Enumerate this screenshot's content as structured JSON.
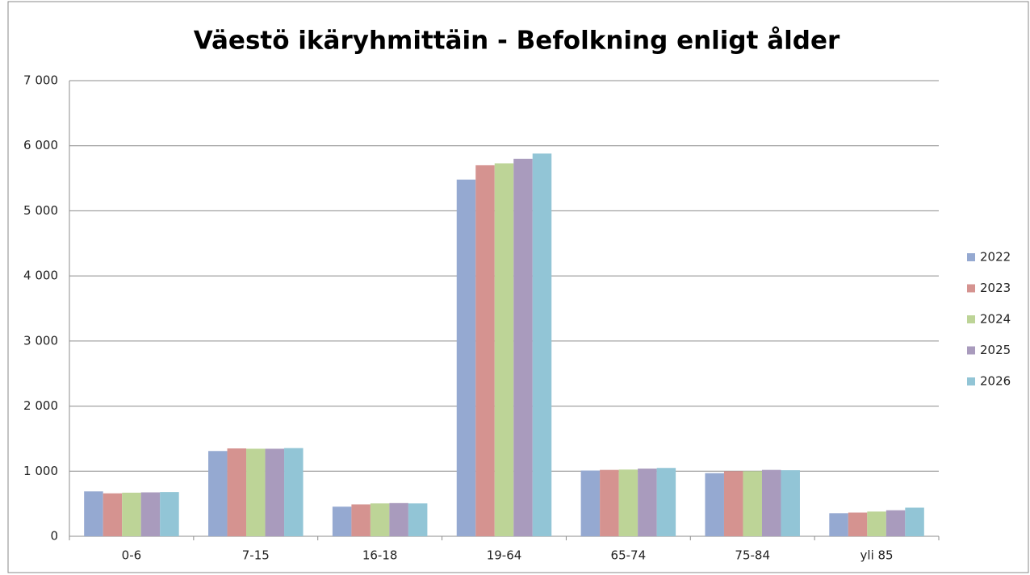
{
  "chart_data": {
    "type": "bar",
    "title": "Väestö ikäryhmittäin - Befolkning enligt ålder",
    "categories": [
      "0-6",
      "7-15",
      "16-18",
      "19-64",
      "65-74",
      "75-84",
      "yli 85"
    ],
    "series": [
      {
        "name": "2022",
        "color": "#95a9d1",
        "values": [
          690,
          1310,
          455,
          5480,
          1010,
          970,
          355
        ]
      },
      {
        "name": "2023",
        "color": "#d59390",
        "values": [
          660,
          1350,
          490,
          5700,
          1020,
          1000,
          365
        ]
      },
      {
        "name": "2024",
        "color": "#bdd497",
        "values": [
          670,
          1345,
          505,
          5730,
          1025,
          1000,
          380
        ]
      },
      {
        "name": "2025",
        "color": "#a99bbd",
        "values": [
          675,
          1345,
          510,
          5800,
          1040,
          1020,
          400
        ]
      },
      {
        "name": "2026",
        "color": "#92c5d6",
        "values": [
          680,
          1355,
          505,
          5880,
          1050,
          1015,
          440
        ]
      }
    ],
    "ylim": [
      0,
      7000
    ],
    "yticks": [
      0,
      {
        "value": 1000,
        "label": "1 000"
      },
      {
        "value": 2000,
        "label": "2 000"
      },
      {
        "value": 3000,
        "label": "3 000"
      },
      {
        "value": 4000,
        "label": "4 000"
      },
      {
        "value": 5000,
        "label": "5 000"
      },
      {
        "value": 6000,
        "label": "6 000"
      },
      {
        "value": 7000,
        "label": "7 000"
      }
    ],
    "grid": true,
    "legend": "right"
  }
}
